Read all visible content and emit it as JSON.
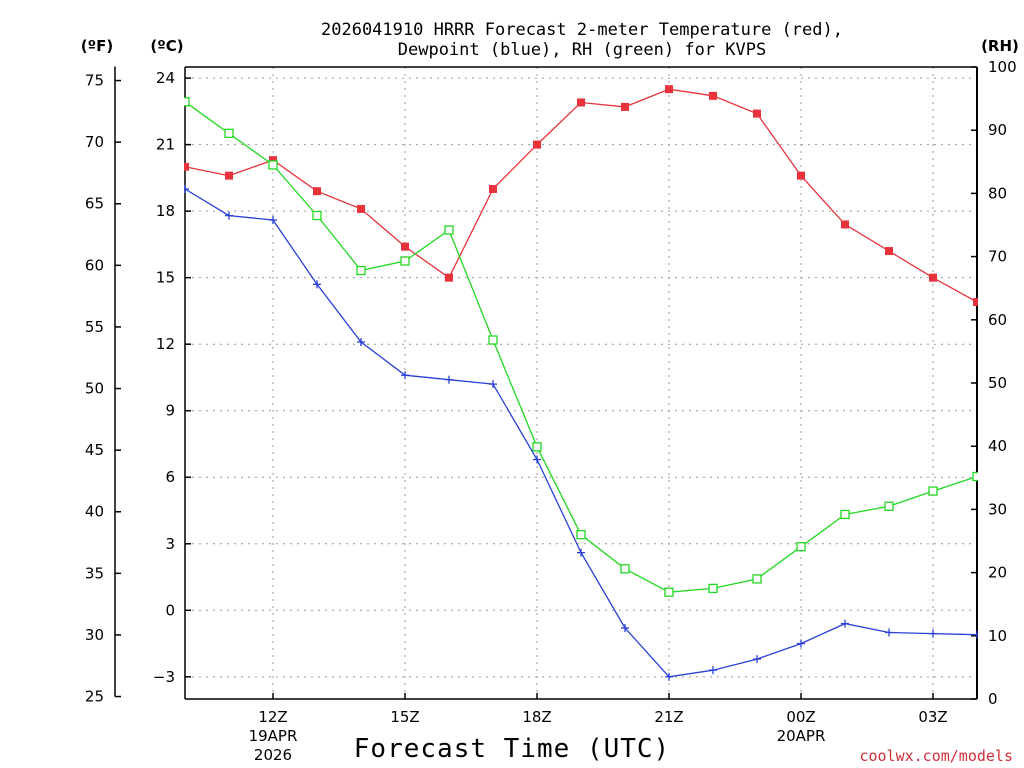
{
  "title_line1": "2026041910 HRRR Forecast 2-meter Temperature (red),",
  "title_line2": "Dewpoint (blue), RH (green) for KVPS",
  "units": {
    "fahrenheit": "(ºF)",
    "celsius": "(ºC)",
    "rh": "(RH)"
  },
  "xlabel": "Forecast Time (UTC)",
  "credit": "coolwx.com/models",
  "colors": {
    "temperature": "#e8323c",
    "dewpoint": "#2a3fd6",
    "rh": "#22d822"
  },
  "chart_data": {
    "type": "line",
    "x_hours": [
      10,
      11,
      12,
      13,
      14,
      15,
      16,
      17,
      18,
      19,
      20,
      21,
      22,
      23,
      24,
      25,
      26,
      27,
      28
    ],
    "xlim": [
      10,
      28
    ],
    "x_ticks": [
      {
        "hour": 12,
        "label": "12Z",
        "sub1": "19APR",
        "sub2": "2026"
      },
      {
        "hour": 15,
        "label": "15Z",
        "sub1": "",
        "sub2": ""
      },
      {
        "hour": 18,
        "label": "18Z",
        "sub1": "",
        "sub2": ""
      },
      {
        "hour": 21,
        "label": "21Z",
        "sub1": "",
        "sub2": ""
      },
      {
        "hour": 24,
        "label": "00Z",
        "sub1": "20APR",
        "sub2": ""
      },
      {
        "hour": 27,
        "label": "03Z",
        "sub1": "",
        "sub2": ""
      }
    ],
    "celsius_axis": {
      "ylim": [
        -4,
        24.5
      ],
      "ticks": [
        -3,
        0,
        3,
        6,
        9,
        12,
        15,
        18,
        21,
        24
      ],
      "labels": [
        "−3",
        "0",
        "3",
        "6",
        "9",
        "12",
        "15",
        "18",
        "21",
        "24"
      ]
    },
    "fahrenheit_axis": {
      "ticks": [
        25,
        30,
        35,
        40,
        45,
        50,
        55,
        60,
        65,
        70,
        75
      ],
      "labels": [
        "25",
        "30",
        "35",
        "40",
        "45",
        "50",
        "55",
        "60",
        "65",
        "70",
        "75"
      ]
    },
    "rh_axis": {
      "ylim": [
        0,
        100
      ],
      "ticks": [
        0,
        10,
        20,
        30,
        40,
        50,
        60,
        70,
        80,
        90,
        100
      ],
      "labels": [
        "0",
        "10",
        "20",
        "30",
        "40",
        "50",
        "60",
        "70",
        "80",
        "90",
        "100"
      ]
    },
    "series": [
      {
        "name": "Temperature",
        "axis": "celsius",
        "marker": "filled-square",
        "values": [
          20.0,
          19.6,
          20.3,
          18.9,
          18.1,
          16.4,
          15.0,
          19.0,
          21.0,
          22.9,
          22.7,
          23.5,
          23.2,
          22.4,
          19.6,
          17.4,
          16.2,
          15.0,
          13.9
        ]
      },
      {
        "name": "Dewpoint",
        "axis": "celsius",
        "marker": "plus",
        "values": [
          19.0,
          17.8,
          17.6,
          14.7,
          12.1,
          10.6,
          10.4,
          10.2,
          6.8,
          2.6,
          -0.8,
          -3.0,
          -2.7,
          -2.2,
          -1.5,
          -0.6,
          -1.0,
          -1.05,
          -1.1
        ]
      },
      {
        "name": "RH",
        "axis": "rh",
        "marker": "open-square",
        "values": [
          94.5,
          89.5,
          84.5,
          76.5,
          67.8,
          69.3,
          74.2,
          56.8,
          39.9,
          26.0,
          20.6,
          16.9,
          17.5,
          19.0,
          24.1,
          29.2,
          30.5,
          32.9,
          35.2
        ]
      }
    ]
  }
}
